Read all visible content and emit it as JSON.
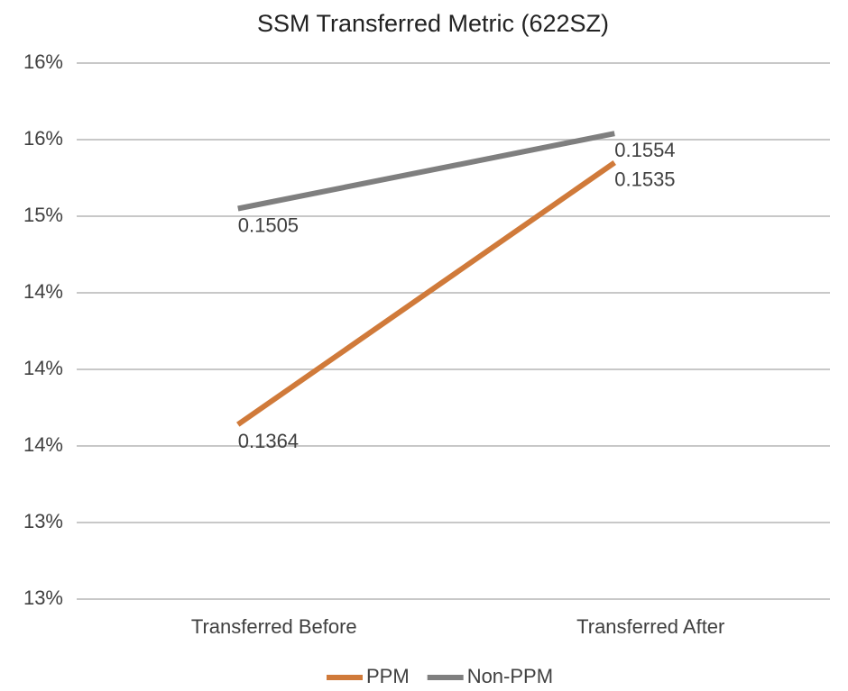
{
  "chart_data": {
    "type": "line",
    "title": "SSM Transferred Metric  (622SZ)",
    "categories": [
      "Transferred Before",
      "Transferred After"
    ],
    "series": [
      {
        "name": "PPM",
        "color": "#d07a3a",
        "values": [
          0.1364,
          0.1535
        ]
      },
      {
        "name": "Non-PPM",
        "color": "#7f7f7f",
        "values": [
          0.1505,
          0.1554
        ]
      }
    ],
    "ylim": [
      0.125,
      0.16
    ],
    "yticks": [
      {
        "value": 0.125,
        "label": "13%"
      },
      {
        "value": 0.13,
        "label": "13%"
      },
      {
        "value": 0.135,
        "label": "14%"
      },
      {
        "value": 0.14,
        "label": "14%"
      },
      {
        "value": 0.145,
        "label": "14%"
      },
      {
        "value": 0.15,
        "label": "15%"
      },
      {
        "value": 0.155,
        "label": "16%"
      },
      {
        "value": 0.16,
        "label": "16%"
      }
    ],
    "grid": true,
    "legend": "bottom"
  }
}
